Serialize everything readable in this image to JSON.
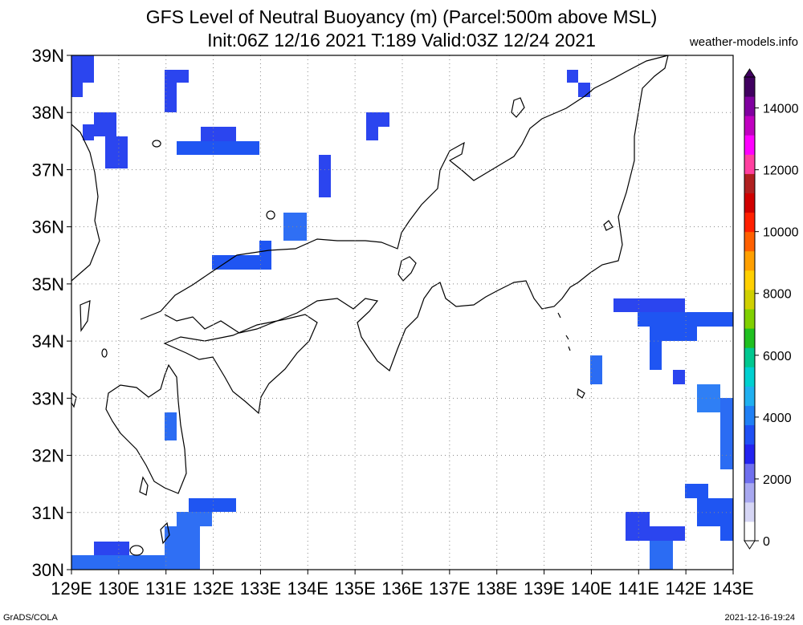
{
  "title_line1": "GFS Level of Neutral Buoyancy (m) (Parcel:500m above MSL)",
  "title_line2": "Init:06Z 12/16 2021 T:189 Valid:03Z 12/24 2021",
  "site": "weather-models.info",
  "footer_left": "GrADS/COLA",
  "footer_right": "2021-12-16-19:24",
  "map": {
    "lon_labels": [
      "129E",
      "130E",
      "131E",
      "132E",
      "133E",
      "134E",
      "135E",
      "136E",
      "137E",
      "138E",
      "139E",
      "140E",
      "141E",
      "142E",
      "143E"
    ],
    "lat_labels": [
      "30N",
      "31N",
      "32N",
      "33N",
      "34N",
      "35N",
      "36N",
      "37N",
      "38N",
      "39N"
    ],
    "lon_range": [
      129,
      143
    ],
    "lat_range": [
      30,
      39
    ],
    "grid": "dotted"
  },
  "colorbar": {
    "labels": [
      "0",
      "2000",
      "4000",
      "6000",
      "8000",
      "10000",
      "12000",
      "14000"
    ],
    "colors": [
      "#ffffff",
      "#d6d6f5",
      "#a8a8f0",
      "#6f6fee",
      "#2323f0",
      "#1f50f5",
      "#2080f5",
      "#20b0f0",
      "#00d0d0",
      "#00c890",
      "#20c020",
      "#80d000",
      "#d0d000",
      "#ffd000",
      "#ffa000",
      "#ff6000",
      "#ff2000",
      "#d00000",
      "#b02020",
      "#ff40a0",
      "#ff00ff",
      "#c000c0",
      "#8000a0",
      "#400060"
    ]
  }
}
